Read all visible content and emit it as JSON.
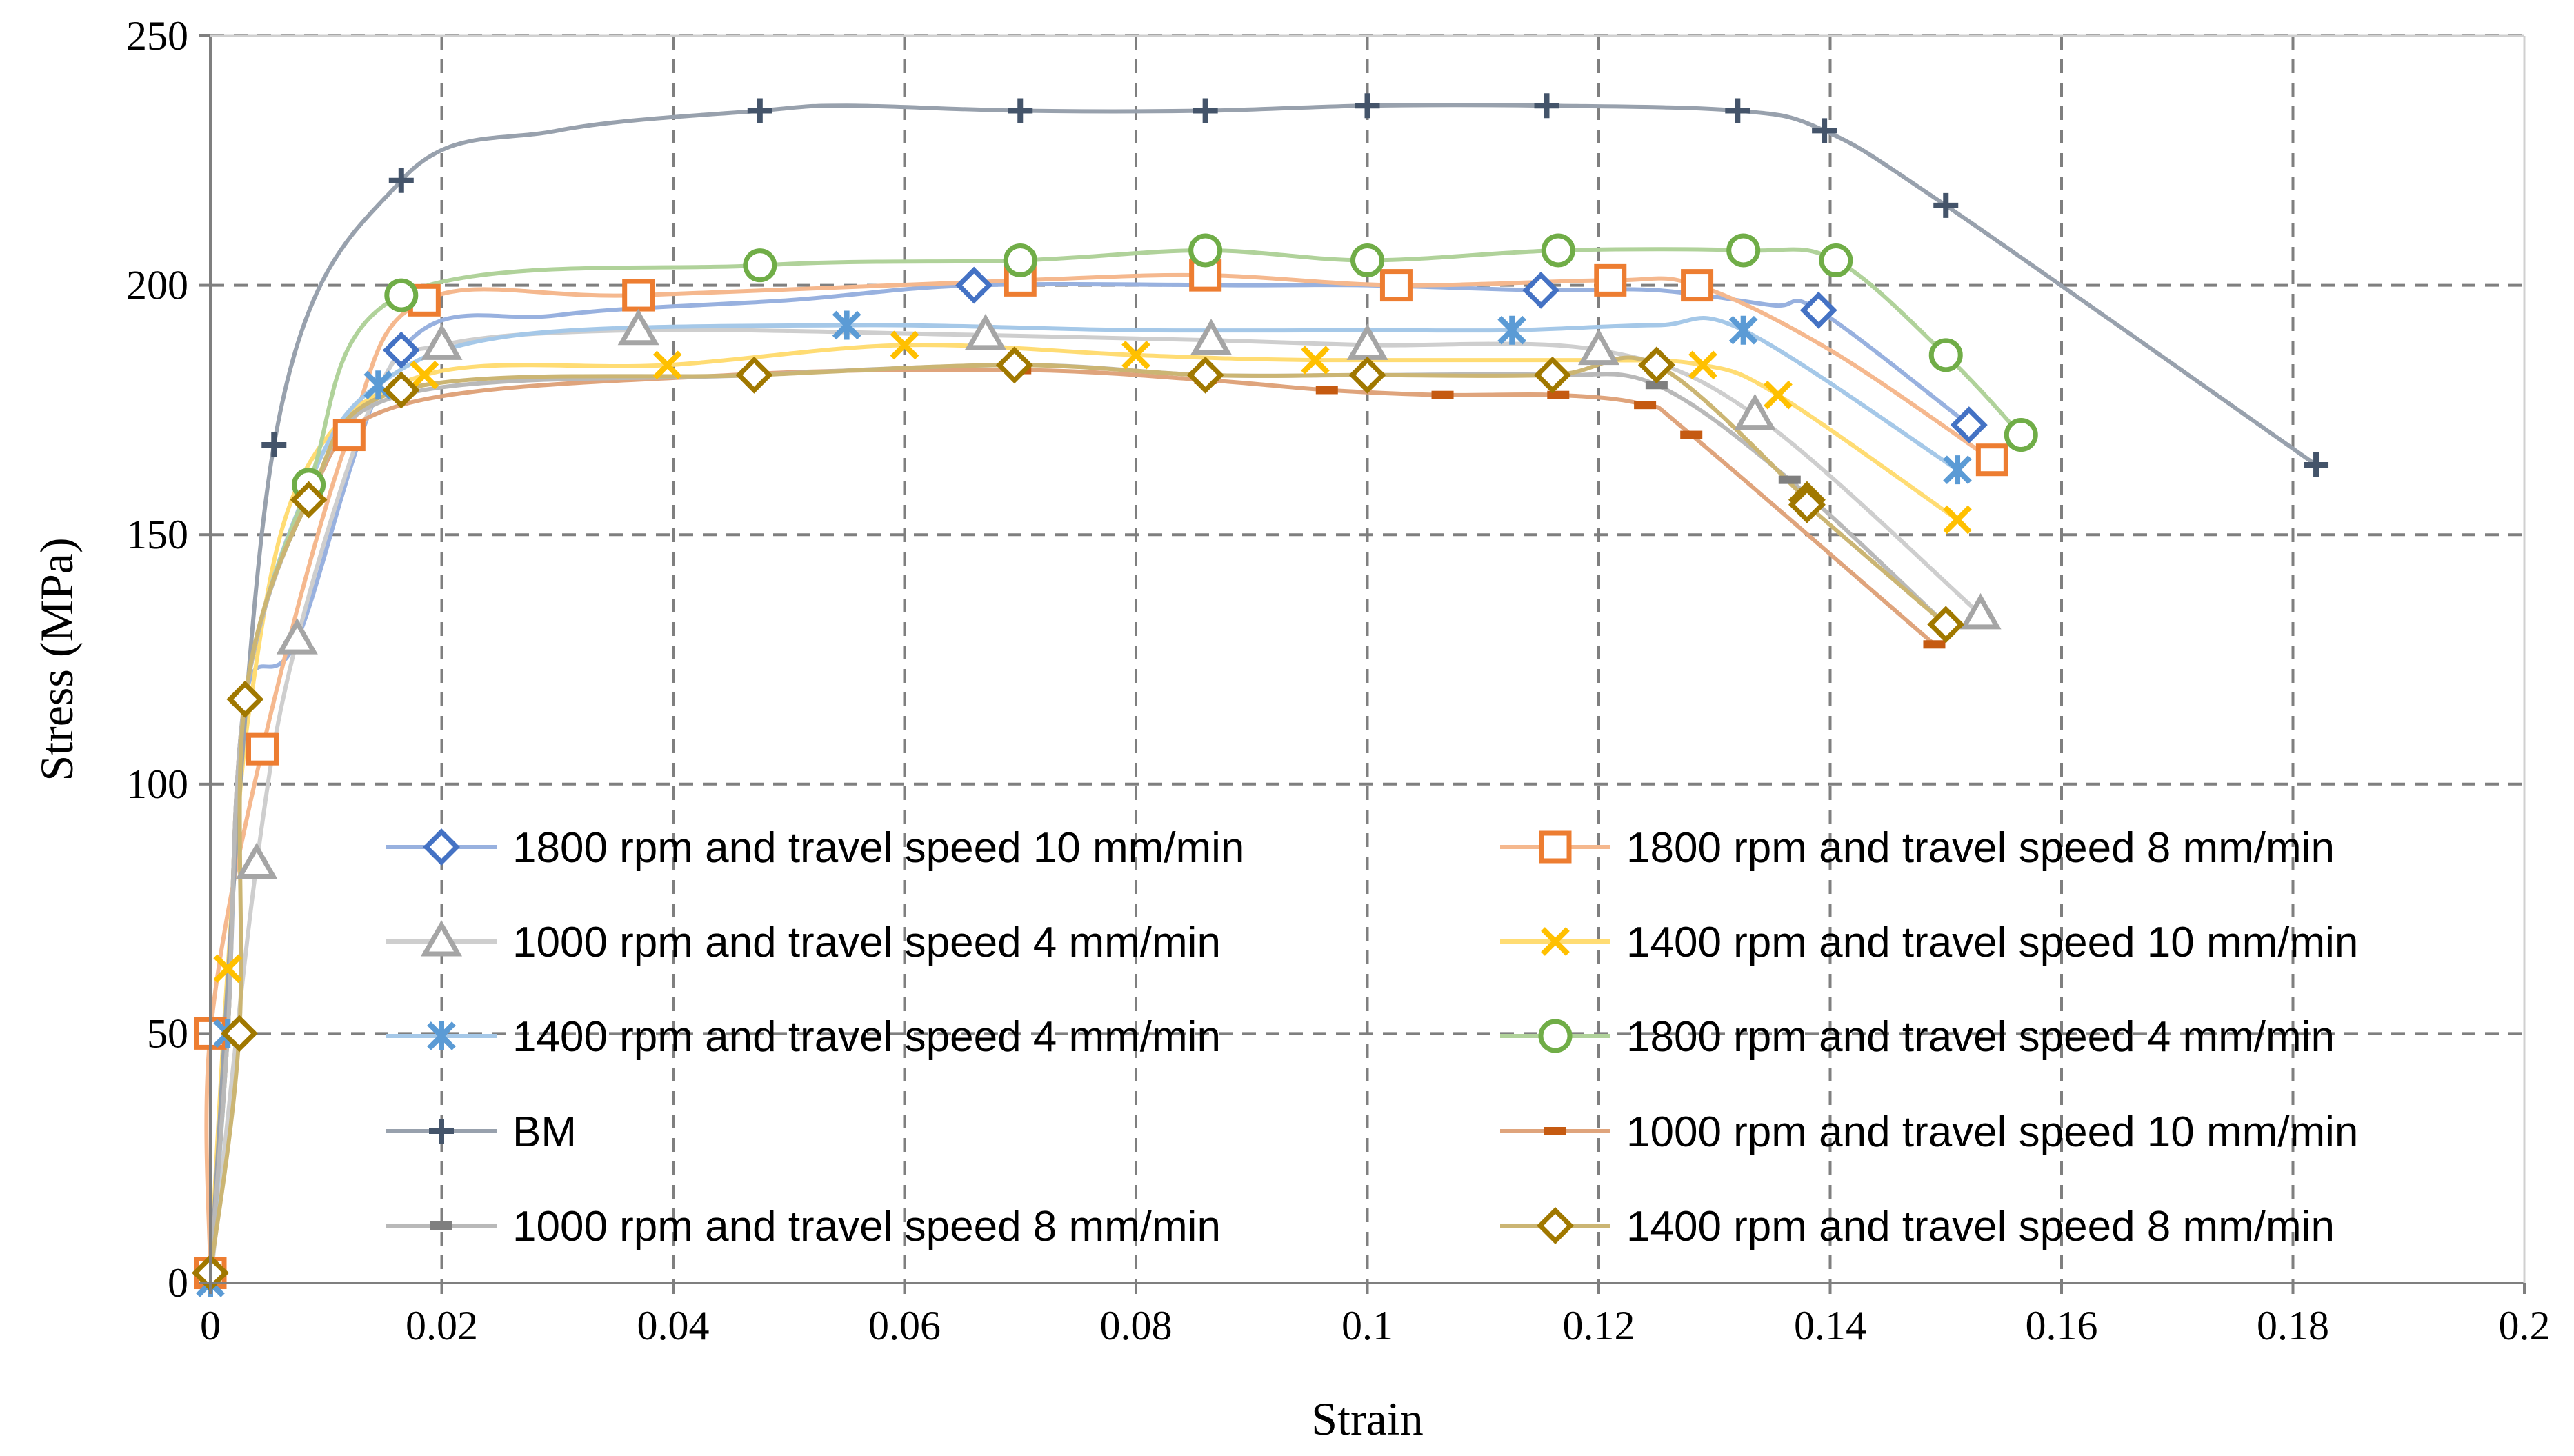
{
  "chart_data": {
    "type": "line",
    "title": "",
    "xlabel": "Strain",
    "ylabel": "Stress  (MPa)",
    "xlim": [
      0,
      0.2
    ],
    "ylim": [
      0,
      250
    ],
    "x_ticks": [
      "0",
      "0.02",
      "0.04",
      "0.06",
      "0.08",
      "0.1",
      "0.12",
      "0.14",
      "0.16",
      "0.18",
      "0.2"
    ],
    "y_ticks": [
      "0",
      "50",
      "100",
      "150",
      "200",
      "250"
    ],
    "grid": "dashed major gridlines",
    "legend_position": "inside-bottom, two columns",
    "series": [
      {
        "name": "1800 rpm and travel speed 10 mm/min",
        "color": "#4472C4",
        "marker": "diamond",
        "points": [
          [
            0,
            2
          ],
          [
            0.0015,
            50
          ],
          [
            0.003,
            117
          ],
          [
            0.0075,
            129
          ],
          [
            0.0165,
            187
          ],
          [
            0.03,
            194
          ],
          [
            0.05,
            197
          ],
          [
            0.066,
            200
          ],
          [
            0.09,
            200
          ],
          [
            0.1,
            200
          ],
          [
            0.115,
            199
          ],
          [
            0.125,
            199
          ],
          [
            0.135,
            196
          ],
          [
            0.139,
            195
          ],
          [
            0.152,
            172
          ]
        ],
        "marker_points": [
          [
            0.0165,
            187
          ],
          [
            0.066,
            200
          ],
          [
            0.115,
            199
          ],
          [
            0.139,
            195
          ],
          [
            0.152,
            172
          ]
        ]
      },
      {
        "name": "1800 rpm and travel speed 8 mm/min",
        "color": "#ED7D31",
        "marker": "square",
        "points": [
          [
            0,
            2
          ],
          [
            0,
            50
          ],
          [
            0.0045,
            107
          ],
          [
            0.012,
            170
          ],
          [
            0.0185,
            197
          ],
          [
            0.037,
            198
          ],
          [
            0.07,
            201
          ],
          [
            0.086,
            202
          ],
          [
            0.1025,
            200
          ],
          [
            0.121,
            201
          ],
          [
            0.1285,
            200
          ],
          [
            0.14,
            187
          ],
          [
            0.154,
            165
          ]
        ],
        "marker_points": [
          [
            0,
            2
          ],
          [
            0,
            50
          ],
          [
            0.0045,
            107
          ],
          [
            0.012,
            170
          ],
          [
            0.0185,
            197
          ],
          [
            0.037,
            198
          ],
          [
            0.07,
            201
          ],
          [
            0.086,
            202
          ],
          [
            0.1025,
            200
          ],
          [
            0.121,
            201
          ],
          [
            0.1285,
            200
          ],
          [
            0.154,
            165
          ]
        ]
      },
      {
        "name": "1000 rpm and travel speed 4 mm/min",
        "color": "#A5A5A5",
        "marker": "triangle",
        "points": [
          [
            0,
            0
          ],
          [
            0.004,
            84
          ],
          [
            0.0075,
            129
          ],
          [
            0.0145,
            179
          ],
          [
            0.02,
            188
          ],
          [
            0.037,
            191
          ],
          [
            0.067,
            190
          ],
          [
            0.0865,
            189
          ],
          [
            0.1,
            188
          ],
          [
            0.12,
            187
          ],
          [
            0.1335,
            174
          ],
          [
            0.153,
            134
          ]
        ],
        "marker_points": [
          [
            0.004,
            84
          ],
          [
            0.0075,
            129
          ],
          [
            0.02,
            188
          ],
          [
            0.037,
            191
          ],
          [
            0.067,
            190
          ],
          [
            0.0865,
            189
          ],
          [
            0.1,
            188
          ],
          [
            0.12,
            187
          ],
          [
            0.1335,
            174
          ],
          [
            0.153,
            134
          ]
        ]
      },
      {
        "name": "1400 rpm and travel speed 10 mm/min",
        "color": "#FFC000",
        "marker": "x",
        "points": [
          [
            0,
            2
          ],
          [
            0.0015,
            63
          ],
          [
            0.0035,
            117
          ],
          [
            0.008,
            162
          ],
          [
            0.0185,
            182
          ],
          [
            0.0395,
            184
          ],
          [
            0.06,
            188
          ],
          [
            0.08,
            186
          ],
          [
            0.0955,
            185
          ],
          [
            0.12,
            185
          ],
          [
            0.129,
            184
          ],
          [
            0.1355,
            178
          ],
          [
            0.151,
            153
          ]
        ],
        "marker_points": [
          [
            0.0015,
            63
          ],
          [
            0.0185,
            182
          ],
          [
            0.0395,
            184
          ],
          [
            0.06,
            188
          ],
          [
            0.08,
            186
          ],
          [
            0.0955,
            185
          ],
          [
            0.129,
            184
          ],
          [
            0.1355,
            178
          ],
          [
            0.151,
            153
          ]
        ]
      },
      {
        "name": "1400 rpm and travel speed 4 mm/min",
        "color": "#5B9BD5",
        "marker": "asterisk",
        "points": [
          [
            0,
            0
          ],
          [
            0.0015,
            50
          ],
          [
            0.003,
            117
          ],
          [
            0.0085,
            160
          ],
          [
            0.0145,
            180
          ],
          [
            0.0265,
            190
          ],
          [
            0.055,
            192
          ],
          [
            0.08,
            191
          ],
          [
            0.1,
            191
          ],
          [
            0.1125,
            191
          ],
          [
            0.125,
            192
          ],
          [
            0.1325,
            191
          ],
          [
            0.151,
            163
          ]
        ],
        "marker_points": [
          [
            0,
            0
          ],
          [
            0.0015,
            50
          ],
          [
            0.0145,
            180
          ],
          [
            0.055,
            192
          ],
          [
            0.1125,
            191
          ],
          [
            0.1325,
            191
          ],
          [
            0.151,
            163
          ]
        ]
      },
      {
        "name": "1800 rpm and travel speed 4 mm/min",
        "color": "#70AD47",
        "marker": "circle",
        "points": [
          [
            0,
            2
          ],
          [
            0.0015,
            50
          ],
          [
            0.003,
            117
          ],
          [
            0.0085,
            160
          ],
          [
            0.0165,
            198
          ],
          [
            0.0475,
            204
          ],
          [
            0.07,
            205
          ],
          [
            0.086,
            207
          ],
          [
            0.1,
            205
          ],
          [
            0.1165,
            207
          ],
          [
            0.1325,
            207
          ],
          [
            0.1405,
            205
          ],
          [
            0.15,
            186
          ],
          [
            0.1565,
            170
          ]
        ],
        "marker_points": [
          [
            0.0085,
            160
          ],
          [
            0.0165,
            198
          ],
          [
            0.0475,
            204
          ],
          [
            0.07,
            205
          ],
          [
            0.086,
            207
          ],
          [
            0.1,
            205
          ],
          [
            0.1165,
            207
          ],
          [
            0.1325,
            207
          ],
          [
            0.1405,
            205
          ],
          [
            0.15,
            186
          ],
          [
            0.1565,
            170
          ]
        ]
      },
      {
        "name": "BM",
        "color": "#44546A",
        "marker": "plus",
        "points": [
          [
            0,
            2
          ],
          [
            0.0055,
            168
          ],
          [
            0.0165,
            221
          ],
          [
            0.03,
            231
          ],
          [
            0.0475,
            235
          ],
          [
            0.055,
            236
          ],
          [
            0.07,
            235
          ],
          [
            0.086,
            235
          ],
          [
            0.1,
            236
          ],
          [
            0.1155,
            236
          ],
          [
            0.132,
            235
          ],
          [
            0.1395,
            231
          ],
          [
            0.15,
            216
          ],
          [
            0.182,
            164
          ]
        ],
        "marker_points": [
          [
            0.0055,
            168
          ],
          [
            0.0165,
            221
          ],
          [
            0.0475,
            235
          ],
          [
            0.07,
            235
          ],
          [
            0.086,
            235
          ],
          [
            0.1,
            236
          ],
          [
            0.1155,
            236
          ],
          [
            0.132,
            235
          ],
          [
            0.1395,
            231
          ],
          [
            0.15,
            216
          ],
          [
            0.182,
            164
          ]
        ]
      },
      {
        "name": "1000 rpm and travel speed 10 mm/min",
        "color": "#C55A11",
        "marker": "dash",
        "points": [
          [
            0,
            2
          ],
          [
            0.0015,
            50
          ],
          [
            0.003,
            117
          ],
          [
            0.0085,
            157
          ],
          [
            0.0165,
            176
          ],
          [
            0.045,
            182
          ],
          [
            0.07,
            183
          ],
          [
            0.086,
            181
          ],
          [
            0.0965,
            179
          ],
          [
            0.1065,
            178
          ],
          [
            0.1165,
            178
          ],
          [
            0.124,
            176
          ],
          [
            0.128,
            170
          ],
          [
            0.149,
            128
          ]
        ],
        "marker_points": [
          [
            0.07,
            183
          ],
          [
            0.086,
            181
          ],
          [
            0.0965,
            179
          ],
          [
            0.1065,
            178
          ],
          [
            0.1165,
            178
          ],
          [
            0.124,
            176
          ],
          [
            0.128,
            170
          ],
          [
            0.149,
            128
          ]
        ]
      },
      {
        "name": "1000 rpm and travel speed 8 mm/min",
        "color": "#7F7F7F",
        "marker": "dash",
        "points": [
          [
            0,
            2
          ],
          [
            0.0015,
            50
          ],
          [
            0.003,
            117
          ],
          [
            0.0085,
            157
          ],
          [
            0.0165,
            178
          ],
          [
            0.047,
            182
          ],
          [
            0.07,
            184
          ],
          [
            0.086,
            182
          ],
          [
            0.1,
            182
          ],
          [
            0.116,
            182
          ],
          [
            0.125,
            180
          ],
          [
            0.1365,
            161
          ],
          [
            0.15,
            132
          ]
        ],
        "marker_points": [
          [
            0.125,
            180
          ],
          [
            0.1365,
            161
          ]
        ]
      },
      {
        "name": "1400 rpm and travel speed 8 mm/min",
        "color": "#A07800",
        "marker": "diamond",
        "points": [
          [
            0,
            2
          ],
          [
            0.0025,
            50
          ],
          [
            0.003,
            117
          ],
          [
            0.0085,
            157
          ],
          [
            0.0165,
            179
          ],
          [
            0.047,
            182
          ],
          [
            0.0695,
            184
          ],
          [
            0.086,
            182
          ],
          [
            0.1,
            182
          ],
          [
            0.116,
            182
          ],
          [
            0.125,
            184
          ],
          [
            0.138,
            157
          ],
          [
            0.138,
            156
          ],
          [
            0.15,
            132
          ]
        ],
        "marker_points": [
          [
            0,
            2
          ],
          [
            0.0025,
            50
          ],
          [
            0.003,
            117
          ],
          [
            0.0085,
            157
          ],
          [
            0.0165,
            179
          ],
          [
            0.047,
            182
          ],
          [
            0.0695,
            184
          ],
          [
            0.086,
            182
          ],
          [
            0.1,
            182
          ],
          [
            0.116,
            182
          ],
          [
            0.125,
            184
          ],
          [
            0.138,
            157
          ],
          [
            0.138,
            156
          ],
          [
            0.15,
            132
          ]
        ]
      }
    ]
  }
}
